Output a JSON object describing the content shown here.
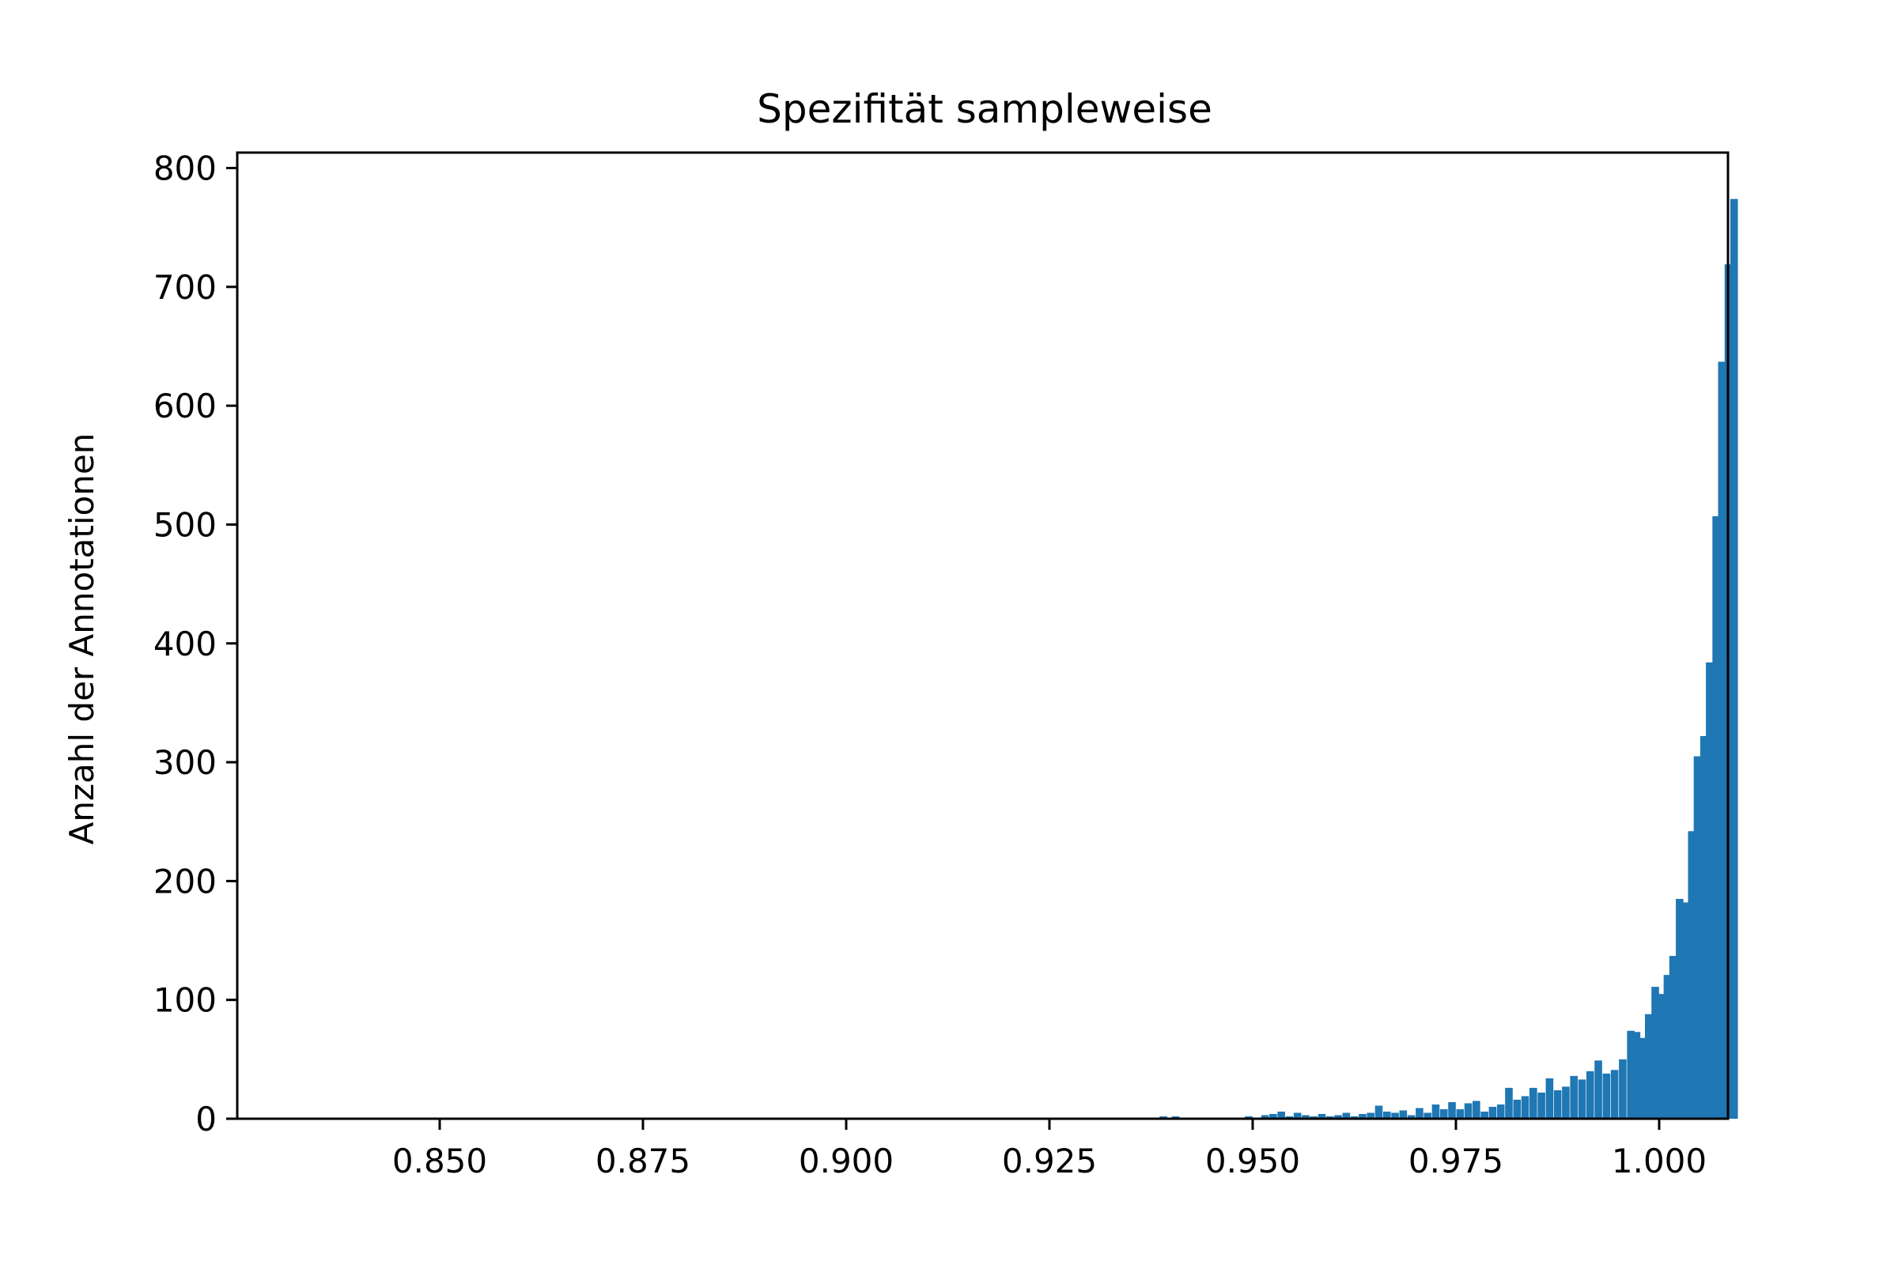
{
  "chart_data": {
    "type": "bar",
    "title": "Spezifität sampleweise",
    "xlabel": "",
    "ylabel": "Anzahl der Annotationen",
    "xlim": [
      0.8255,
      1.0085
    ],
    "ylim": [
      0,
      813
    ],
    "grid": false,
    "bar_color": "#1f77b4",
    "bin_width": 0.000875,
    "x_ticks": [
      0.85,
      0.875,
      0.9,
      0.925,
      0.95,
      0.975,
      1.0
    ],
    "x_tick_labels": [
      "0.850",
      "0.875",
      "0.900",
      "0.925",
      "0.950",
      "0.975",
      "1.000"
    ],
    "y_ticks": [
      0,
      100,
      200,
      300,
      400,
      500,
      600,
      700,
      800
    ],
    "y_tick_labels": [
      "0",
      "100",
      "200",
      "300",
      "400",
      "500",
      "600",
      "700",
      "800"
    ],
    "bins": [
      {
        "x": 0.931,
        "y": 1
      },
      {
        "x": 0.936,
        "y": 1
      },
      {
        "x": 0.9385,
        "y": 2
      },
      {
        "x": 0.94,
        "y": 2
      },
      {
        "x": 0.9415,
        "y": 1
      },
      {
        "x": 0.9445,
        "y": 1
      },
      {
        "x": 0.946,
        "y": 1
      },
      {
        "x": 0.9475,
        "y": 1
      },
      {
        "x": 0.949,
        "y": 2
      },
      {
        "x": 0.95,
        "y": 1
      },
      {
        "x": 0.951,
        "y": 3
      },
      {
        "x": 0.952,
        "y": 4
      },
      {
        "x": 0.953,
        "y": 6
      },
      {
        "x": 0.954,
        "y": 2
      },
      {
        "x": 0.955,
        "y": 5
      },
      {
        "x": 0.956,
        "y": 3
      },
      {
        "x": 0.957,
        "y": 2
      },
      {
        "x": 0.958,
        "y": 4
      },
      {
        "x": 0.959,
        "y": 2
      },
      {
        "x": 0.96,
        "y": 3
      },
      {
        "x": 0.961,
        "y": 5
      },
      {
        "x": 0.962,
        "y": 2
      },
      {
        "x": 0.963,
        "y": 4
      },
      {
        "x": 0.964,
        "y": 5
      },
      {
        "x": 0.965,
        "y": 11
      },
      {
        "x": 0.966,
        "y": 6
      },
      {
        "x": 0.967,
        "y": 5
      },
      {
        "x": 0.968,
        "y": 7
      },
      {
        "x": 0.969,
        "y": 3
      },
      {
        "x": 0.97,
        "y": 9
      },
      {
        "x": 0.971,
        "y": 5
      },
      {
        "x": 0.972,
        "y": 12
      },
      {
        "x": 0.973,
        "y": 8
      },
      {
        "x": 0.974,
        "y": 14
      },
      {
        "x": 0.975,
        "y": 8
      },
      {
        "x": 0.976,
        "y": 13
      },
      {
        "x": 0.977,
        "y": 15
      },
      {
        "x": 0.978,
        "y": 6
      },
      {
        "x": 0.979,
        "y": 10
      },
      {
        "x": 0.98,
        "y": 12
      },
      {
        "x": 0.981,
        "y": 26
      },
      {
        "x": 0.982,
        "y": 16
      },
      {
        "x": 0.983,
        "y": 19
      },
      {
        "x": 0.984,
        "y": 26
      },
      {
        "x": 0.985,
        "y": 22
      },
      {
        "x": 0.986,
        "y": 34
      },
      {
        "x": 0.987,
        "y": 24
      },
      {
        "x": 0.988,
        "y": 27
      },
      {
        "x": 0.989,
        "y": 36
      },
      {
        "x": 0.99,
        "y": 33
      },
      {
        "x": 0.991,
        "y": 40
      },
      {
        "x": 0.992,
        "y": 49
      },
      {
        "x": 0.993,
        "y": 38
      },
      {
        "x": 0.994,
        "y": 41
      },
      {
        "x": 0.995,
        "y": 50
      },
      {
        "x": 0.996,
        "y": 74
      },
      {
        "x": 0.9967,
        "y": 73
      },
      {
        "x": 0.9975,
        "y": 68
      },
      {
        "x": 0.9982,
        "y": 88
      },
      {
        "x": 0.999,
        "y": 111
      },
      {
        "x": 0.9997,
        "y": 105
      },
      {
        "x": 1.0005,
        "y": 121
      },
      {
        "x": 1.0012,
        "y": 137
      },
      {
        "x": 1.002,
        "y": 185
      },
      {
        "x": 1.0027,
        "y": 182
      },
      {
        "x": 1.0035,
        "y": 242
      },
      {
        "x": 1.0042,
        "y": 305
      },
      {
        "x": 1.005,
        "y": 322
      },
      {
        "x": 1.0057,
        "y": 384
      },
      {
        "x": 1.0065,
        "y": 507
      },
      {
        "x": 1.0072,
        "y": 637
      },
      {
        "x": 1.008,
        "y": 719
      },
      {
        "x": 1.0087,
        "y": 774
      }
    ]
  }
}
